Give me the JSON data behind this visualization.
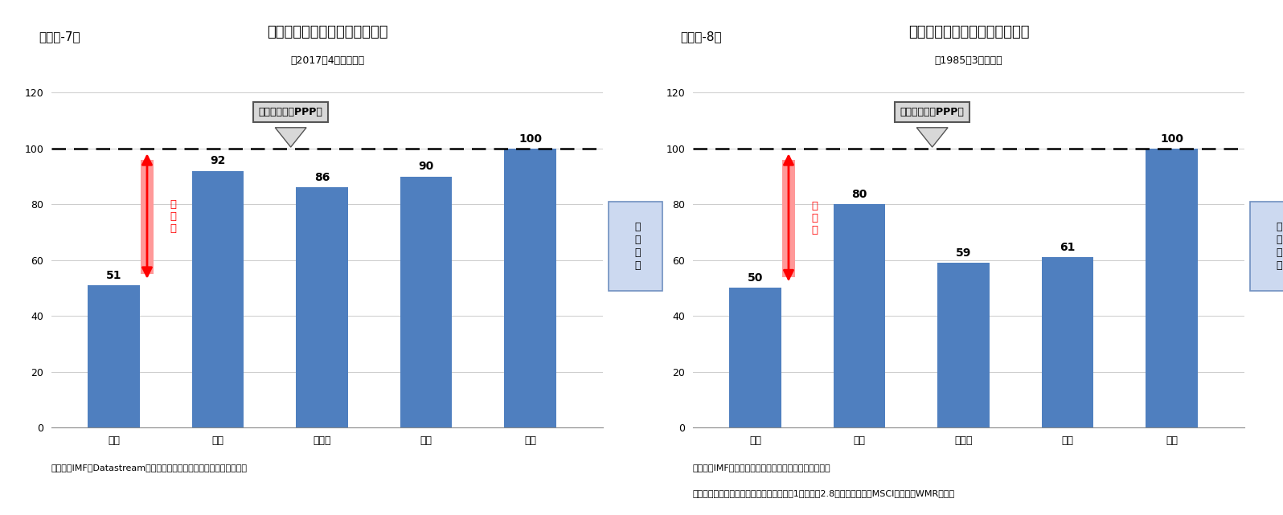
{
  "chart1": {
    "panel_label": "（図表-7）",
    "title": "各通貨の購買力平価と市場実勢",
    "subtitle": "（2017年4月末時点）",
    "categories": [
      "中国",
      "日本",
      "ドイツ",
      "英国",
      "米国"
    ],
    "values": [
      51,
      92,
      86,
      90,
      100
    ],
    "bar_color": "#4f7fbf",
    "ylim": [
      0,
      120
    ],
    "yticks": [
      0,
      20,
      40,
      60,
      80,
      100,
      120
    ],
    "ppp_label": "購買力平価（PPP）",
    "source": "（資料）IMF、Datastreamのデータを元にニッセイ基礎研究所で作成"
  },
  "chart2": {
    "panel_label": "（図表-8）",
    "title": "各通貨の購買力平価と市場実勢",
    "subtitle": "（1985年3月時点）",
    "categories": [
      "中国",
      "日本",
      "ドイツ",
      "英国",
      "米国"
    ],
    "values": [
      50,
      80,
      59,
      61,
      100
    ],
    "bar_color": "#4f7fbf",
    "ylim": [
      0,
      120
    ],
    "yticks": [
      0,
      20,
      40,
      60,
      80,
      100,
      120
    ],
    "ppp_label": "購買力平価（PPP）",
    "source1": "（資料）IMFのデータを元にニッセイ基礎研究所で作成",
    "source2": "（注）中国は当時の貿易用内部決済相場（1米ドル＝2.8元）、日本円はMSCI、英独はWMRを使用"
  },
  "background_color": "#ffffff",
  "dashed_line_y": 100,
  "dashed_line_color": "#000000",
  "value_fontsize": 10,
  "tick_fontsize": 9,
  "title_fontsize": 13,
  "subtitle_fontsize": 9,
  "panel_fontsize": 11,
  "source_fontsize": 8
}
